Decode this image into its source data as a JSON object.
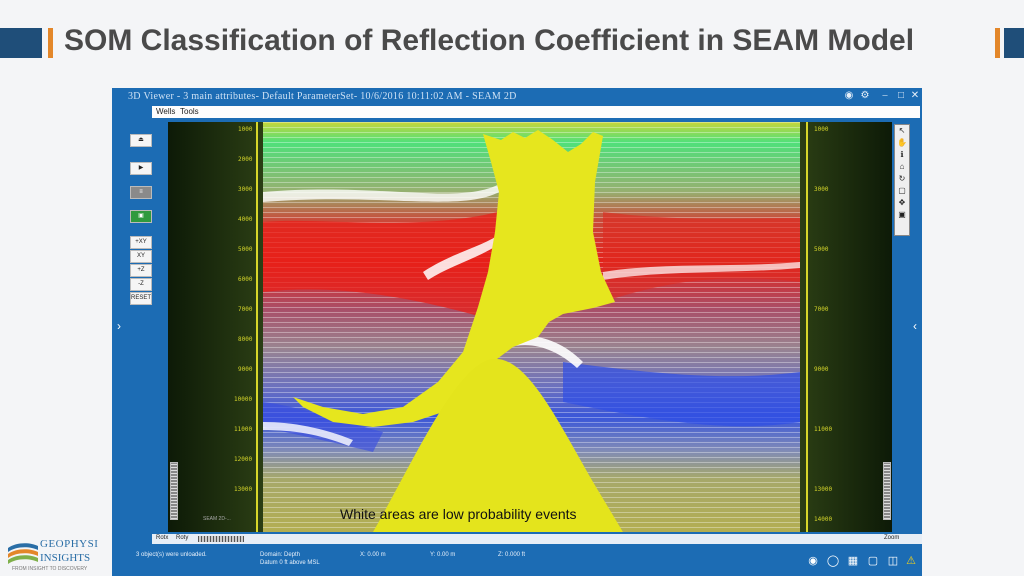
{
  "slide": {
    "title": "SOM Classification of Reflection Coefficient in SEAM Model",
    "accent_color": "#e3872a",
    "brand_color": "#1f4e79"
  },
  "window": {
    "title": "3D Viewer - 3 main attributes- Default ParameterSet- 10/6/2016 10:11:02 AM - SEAM 2D",
    "menu": [
      "Wells",
      "Tools"
    ],
    "controls": [
      "camera-icon",
      "settings-icon",
      "minimize-icon",
      "maximize-icon",
      "close-icon"
    ]
  },
  "left_toolbar": {
    "buttons": [
      "⏏",
      "▶",
      "≡",
      "▣"
    ],
    "view_buttons": [
      "+XY",
      "XY",
      "+Z",
      "-Z",
      "RESET"
    ]
  },
  "viewer": {
    "caption": "White areas are low probability events",
    "overlay_text": "SEAM 2D-... ",
    "depth_ticks": [
      "1000",
      "2000",
      "3000",
      "4000",
      "5000",
      "6000",
      "7000",
      "8000",
      "9000",
      "10000",
      "11000",
      "12000",
      "13000",
      "14000"
    ],
    "colors": {
      "salt_body": "#e8e820",
      "high_red": "#e6241c",
      "green_top": "#44e36a",
      "blue": "#3254e0",
      "olive": "#a8a84a"
    }
  },
  "bottom_row": {
    "rot_x": "Rotx",
    "rot_y": "Roty",
    "zoom": "Zoom"
  },
  "status": {
    "message": "3 object(s) were unloaded.",
    "domain": "Domain: Depth",
    "datum": "Datum 0 ft above MSL",
    "x": "X:  0.00 m",
    "y": "Y:  0.00 m",
    "z": "Z:  0.000 ft"
  },
  "logo": {
    "name": "GEOPHYSI",
    "sub": "INSIGHTS",
    "tagline": "FROM INSIGHT TO DISCOVERY"
  }
}
